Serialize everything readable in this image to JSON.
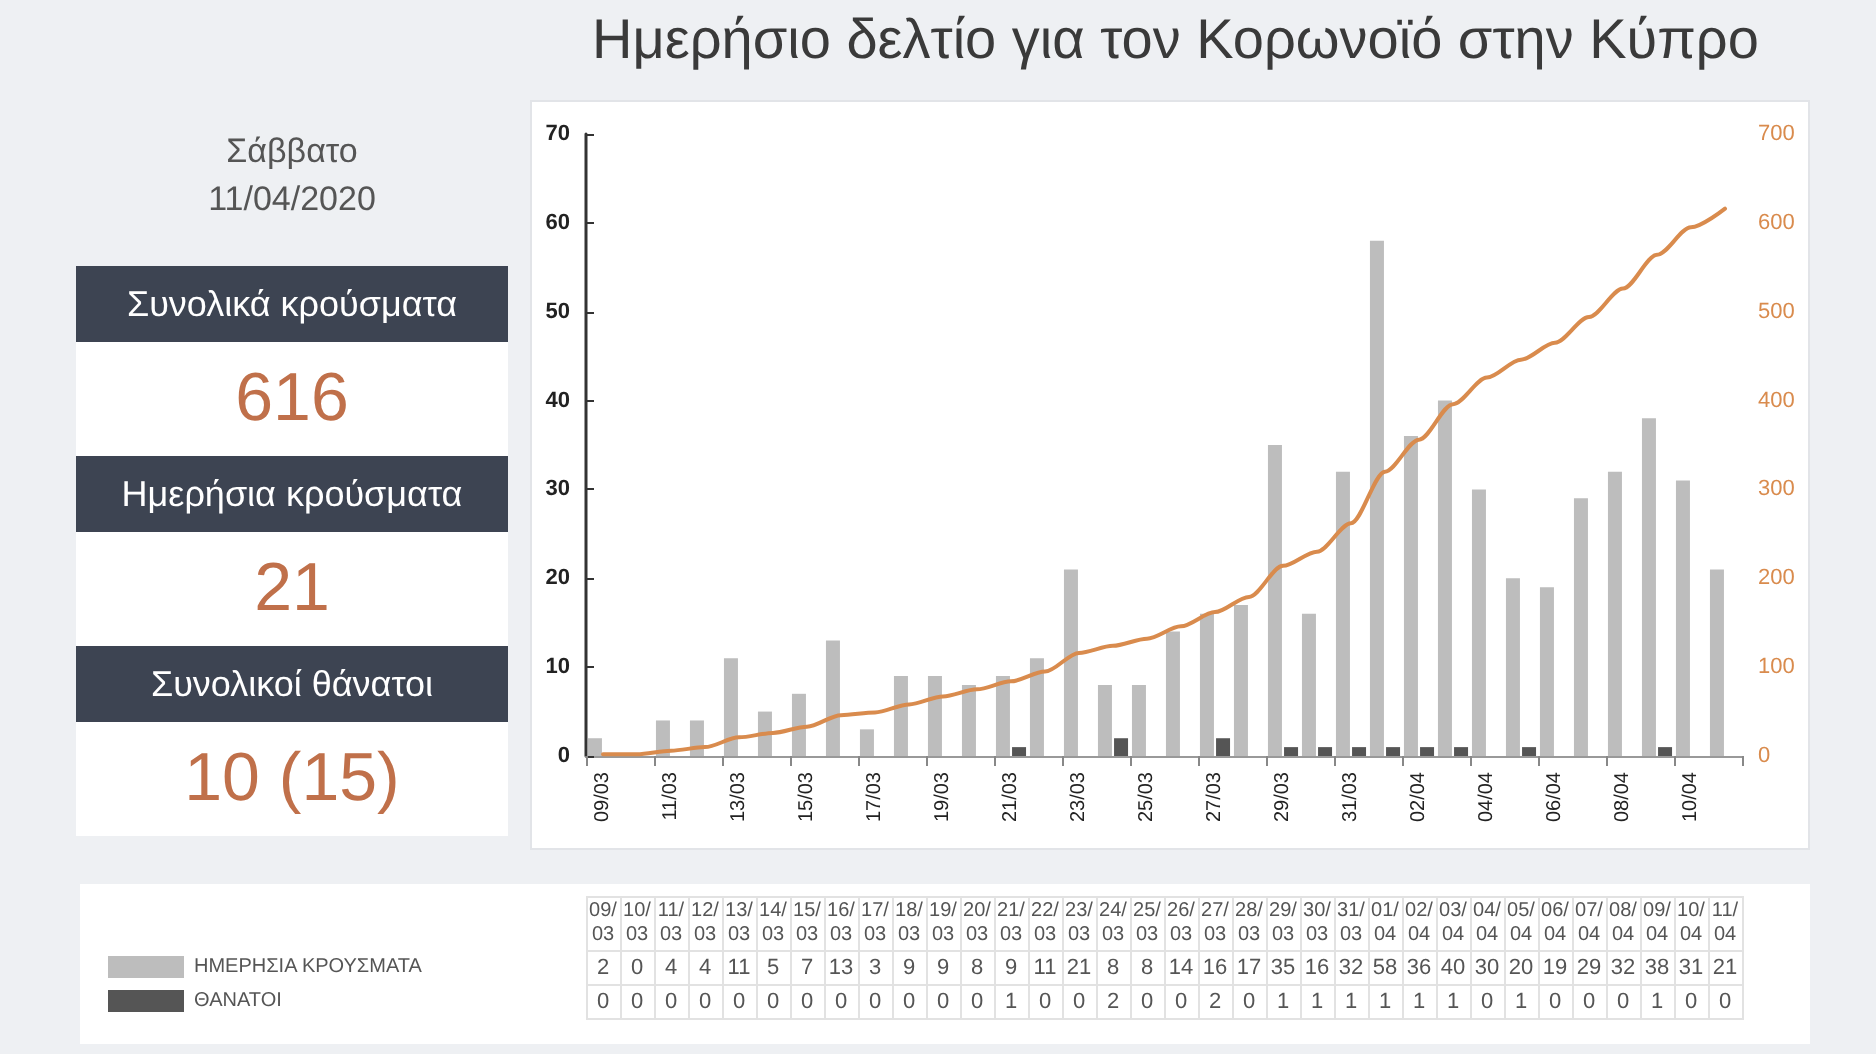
{
  "chart_data": [
    {
      "type": "other",
      "title": "Σάββατο",
      "subtitle": "11/04/2020",
      "categories": [
        "Συνολικά κρούσματα",
        "Ημερήσια κρούσματα",
        "Συνολικοί θάνατοι"
      ],
      "value_labels": [
        "616",
        "21",
        "10 (15)"
      ]
    },
    {
      "type": "bar",
      "title": "Ημερήσιο δελτίο για τον Κορωνοϊό στην Κύπρο",
      "categories": [
        "09/03",
        "10/03",
        "11/03",
        "12/03",
        "13/03",
        "14/03",
        "15/03",
        "16/03",
        "17/03",
        "18/03",
        "19/03",
        "20/03",
        "21/03",
        "22/03",
        "23/03",
        "24/03",
        "25/03",
        "26/03",
        "27/03",
        "28/03",
        "29/03",
        "30/03",
        "31/03",
        "01/04",
        "02/04",
        "03/04",
        "04/04",
        "05/04",
        "06/04",
        "07/04",
        "08/04",
        "09/04",
        "10/04",
        "11/04"
      ],
      "series": [
        {
          "name": "ΗΜΕΡΗΣΙΑ ΚΡΟΥΣΜΑΤΑ",
          "color": "#bdbdbd",
          "data_labels": true,
          "values": [
            2,
            0,
            4,
            4,
            11,
            5,
            7,
            13,
            3,
            9,
            9,
            8,
            9,
            11,
            21,
            8,
            8,
            14,
            16,
            17,
            35,
            16,
            32,
            58,
            36,
            40,
            30,
            20,
            19,
            29,
            32,
            38,
            31,
            21
          ]
        },
        {
          "name": "ΘΑΝΑΤΟΙ",
          "color": "#555555",
          "data_labels": true,
          "values": [
            0,
            0,
            0,
            0,
            0,
            0,
            0,
            0,
            0,
            0,
            0,
            0,
            1,
            0,
            0,
            2,
            0,
            0,
            2,
            0,
            1,
            1,
            1,
            1,
            1,
            1,
            0,
            1,
            0,
            0,
            0,
            1,
            0,
            0
          ]
        },
        {
          "type": "line",
          "axis": "y2",
          "color": "#d98b4d",
          "values": [
            2,
            2,
            6,
            10,
            21,
            26,
            33,
            46,
            49,
            58,
            67,
            75,
            84,
            95,
            116,
            124,
            132,
            146,
            162,
            179,
            214,
            230,
            262,
            320,
            356,
            396,
            426,
            446,
            465,
            494,
            526,
            564,
            595,
            616
          ]
        }
      ],
      "ylim": [
        0,
        70
      ],
      "yticks": [
        0,
        10,
        20,
        30,
        40,
        50,
        60,
        70
      ],
      "y2lim": [
        0,
        700
      ],
      "y2ticks": [
        0,
        100,
        200,
        300,
        400,
        500,
        600,
        700
      ],
      "legend": "bottom",
      "marker": "none",
      "line_style": "solid"
    }
  ]
}
